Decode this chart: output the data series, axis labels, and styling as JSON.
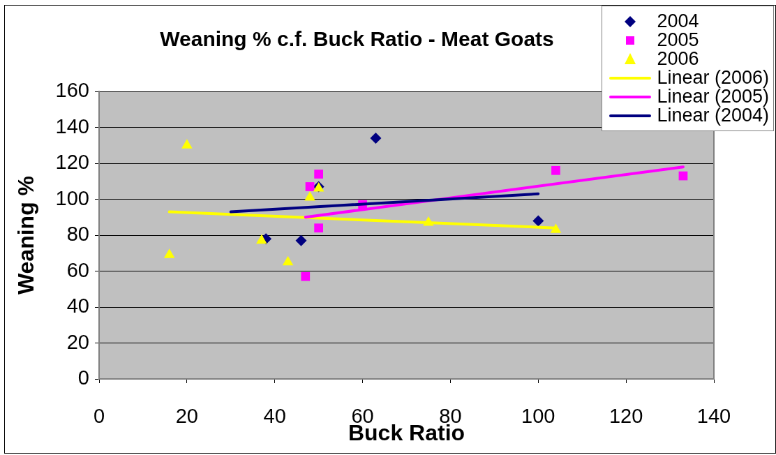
{
  "chart_data": {
    "type": "scatter",
    "title": "Weaning % c.f. Buck Ratio - Meat Goats",
    "xlabel": "Buck Ratio",
    "ylabel": "Weaning %",
    "xlim": [
      0,
      140
    ],
    "xticks": [
      0,
      20,
      40,
      60,
      80,
      100,
      120,
      140
    ],
    "ylim": [
      0,
      160
    ],
    "yticks": [
      0,
      20,
      40,
      60,
      80,
      100,
      120,
      140,
      160
    ],
    "grid": "y",
    "legend": "top right",
    "series": [
      {
        "name": "2004",
        "type": "scatter",
        "color": "#000080",
        "marker": "diamond",
        "x": [
          38,
          46,
          50,
          63,
          100
        ],
        "values": [
          78,
          77,
          107,
          134,
          88
        ]
      },
      {
        "name": "2005",
        "type": "scatter",
        "color": "#ff00ff",
        "marker": "square",
        "x": [
          47,
          48,
          50,
          50,
          60,
          104,
          133
        ],
        "values": [
          57,
          107,
          114,
          84,
          97,
          116,
          113
        ]
      },
      {
        "name": "2006",
        "type": "scatter",
        "color": "#ffff00",
        "marker": "triangle",
        "x": [
          16,
          20,
          37,
          43,
          48,
          50,
          75,
          104
        ],
        "values": [
          69,
          130,
          77,
          65,
          101,
          106,
          87,
          83
        ]
      },
      {
        "name": "Linear (2006)",
        "type": "line",
        "color": "#ffff00",
        "marker": "none",
        "x": [
          16,
          104
        ],
        "values": [
          93,
          84
        ]
      },
      {
        "name": "Linear (2005)",
        "type": "line",
        "color": "#ff00ff",
        "marker": "none",
        "x": [
          47,
          133
        ],
        "values": [
          90,
          118
        ]
      },
      {
        "name": "Linear (2004)",
        "type": "line",
        "color": "#000080",
        "marker": "none",
        "x": [
          30,
          100
        ],
        "values": [
          93,
          103
        ]
      }
    ]
  }
}
